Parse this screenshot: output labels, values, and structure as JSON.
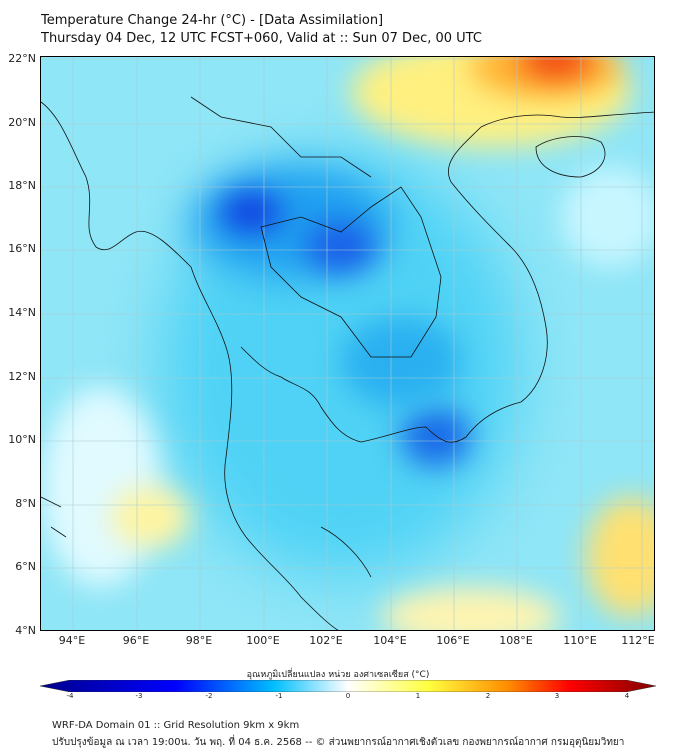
{
  "title": "Temperature Change 24-hr (°C) - [Data Assimilation]",
  "subtitle": "Thursday 04 Dec, 12 UTC FCST+060, Valid at :: Sun 07 Dec, 00 UTC",
  "lat_labels": [
    "22°N",
    "20°N",
    "18°N",
    "16°N",
    "14°N",
    "12°N",
    "10°N",
    "8°N",
    "6°N",
    "4°N"
  ],
  "lon_labels": [
    "94°E",
    "96°E",
    "98°E",
    "100°E",
    "102°E",
    "104°E",
    "106°E",
    "108°E",
    "110°E",
    "112°E"
  ],
  "colorbar": {
    "label": "อุณหภูมิเปลี่ยนแปลง หน่วย องศาเซลเซียส (°C)",
    "ticks": [
      "-4",
      "-3",
      "-2",
      "-1",
      "0",
      "1",
      "2",
      "3",
      "4"
    ],
    "range": [
      -4,
      4
    ],
    "colors": [
      "#00008b",
      "#0000ff",
      "#00bfff",
      "#ffffff",
      "#ffff40",
      "#ff8c00",
      "#ff0000",
      "#800000"
    ]
  },
  "footer": {
    "line1": "WRF-DA Domain 01 :: Grid Resolution 9km x 9km",
    "line2": "ปรับปรุงข้อมูล ณ เวลา 19:00น. วัน พฤ. ที่ 04 ธ.ค. 2568 -- © ส่วนพยากรณ์อากาศเชิงตัวเลข กองพยากรณ์อากาศ กรมอุตุนิยมวิทยา"
  }
}
